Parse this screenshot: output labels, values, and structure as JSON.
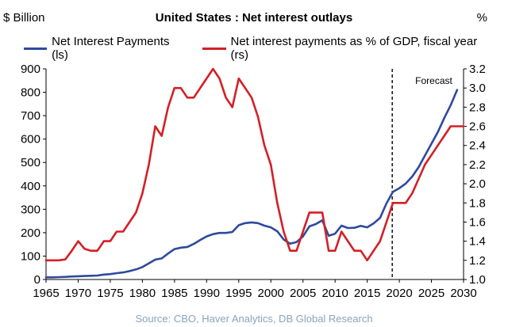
{
  "header": {
    "left_unit": "$ Billion",
    "title": "United States : Net interest outlays",
    "right_unit": "%"
  },
  "source": "Source: CBO, Haver Analytics, DB Global Research",
  "chart_data": {
    "type": "line",
    "title": "United States : Net interest outlays",
    "x_ticks": [
      "1965",
      "1970",
      "1975",
      "1980",
      "1985",
      "1990",
      "1995",
      "2000",
      "2005",
      "2010",
      "2015",
      "2020",
      "2025",
      "2030"
    ],
    "xlim": [
      1965,
      2030
    ],
    "y_left": {
      "label": "$ Billion",
      "lim": [
        0,
        900
      ],
      "ticks": [
        "0",
        "100",
        "200",
        "300",
        "400",
        "500",
        "600",
        "700",
        "800",
        "900"
      ]
    },
    "y_right": {
      "label": "%",
      "lim": [
        1.0,
        3.2
      ],
      "ticks": [
        "1.0",
        "1.2",
        "1.4",
        "1.6",
        "1.8",
        "2.0",
        "2.2",
        "2.4",
        "2.6",
        "2.8",
        "3.0",
        "3.2"
      ]
    },
    "grid": false,
    "legend_position": "top",
    "forecast": {
      "label": "Forecast",
      "x": 2018.9
    },
    "series": [
      {
        "name": "Net Interest Payments (ls)",
        "axis": "left",
        "color": "#2e4a9c",
        "points": [
          [
            1965,
            9
          ],
          [
            1966,
            9
          ],
          [
            1967,
            10
          ],
          [
            1968,
            11
          ],
          [
            1969,
            13
          ],
          [
            1970,
            14
          ],
          [
            1971,
            15
          ],
          [
            1972,
            16
          ],
          [
            1973,
            17
          ],
          [
            1974,
            21
          ],
          [
            1975,
            23
          ],
          [
            1976,
            27
          ],
          [
            1977,
            30
          ],
          [
            1978,
            36
          ],
          [
            1979,
            43
          ],
          [
            1980,
            53
          ],
          [
            1981,
            69
          ],
          [
            1982,
            85
          ],
          [
            1983,
            90
          ],
          [
            1984,
            111
          ],
          [
            1985,
            130
          ],
          [
            1986,
            136
          ],
          [
            1987,
            139
          ],
          [
            1988,
            152
          ],
          [
            1989,
            169
          ],
          [
            1990,
            184
          ],
          [
            1991,
            194
          ],
          [
            1992,
            199
          ],
          [
            1993,
            199
          ],
          [
            1994,
            203
          ],
          [
            1995,
            232
          ],
          [
            1996,
            241
          ],
          [
            1997,
            244
          ],
          [
            1998,
            241
          ],
          [
            1999,
            230
          ],
          [
            2000,
            223
          ],
          [
            2001,
            206
          ],
          [
            2002,
            171
          ],
          [
            2003,
            153
          ],
          [
            2004,
            160
          ],
          [
            2005,
            184
          ],
          [
            2006,
            227
          ],
          [
            2007,
            237
          ],
          [
            2008,
            253
          ],
          [
            2009,
            187
          ],
          [
            2010,
            196
          ],
          [
            2011,
            230
          ],
          [
            2012,
            220
          ],
          [
            2013,
            221
          ],
          [
            2014,
            229
          ],
          [
            2015,
            223
          ],
          [
            2016,
            240
          ],
          [
            2017,
            263
          ],
          [
            2018,
            325
          ],
          [
            2019,
            375
          ],
          [
            2020,
            390
          ],
          [
            2021,
            410
          ],
          [
            2022,
            440
          ],
          [
            2023,
            480
          ],
          [
            2024,
            530
          ],
          [
            2025,
            580
          ],
          [
            2026,
            630
          ],
          [
            2027,
            690
          ],
          [
            2028,
            745
          ],
          [
            2029,
            810
          ]
        ]
      },
      {
        "name": "Net interest payments as % of GDP, fiscal year (rs)",
        "axis": "right",
        "color": "#d41f26",
        "points": [
          [
            1965,
            1.2
          ],
          [
            1966,
            1.2
          ],
          [
            1967,
            1.2
          ],
          [
            1968,
            1.21
          ],
          [
            1969,
            1.3
          ],
          [
            1970,
            1.4
          ],
          [
            1971,
            1.32
          ],
          [
            1972,
            1.3
          ],
          [
            1973,
            1.3
          ],
          [
            1974,
            1.4
          ],
          [
            1975,
            1.4
          ],
          [
            1976,
            1.5
          ],
          [
            1977,
            1.5
          ],
          [
            1978,
            1.6
          ],
          [
            1979,
            1.7
          ],
          [
            1980,
            1.9
          ],
          [
            1981,
            2.2
          ],
          [
            1982,
            2.6
          ],
          [
            1983,
            2.5
          ],
          [
            1984,
            2.8
          ],
          [
            1985,
            3.0
          ],
          [
            1986,
            3.0
          ],
          [
            1987,
            2.9
          ],
          [
            1988,
            2.9
          ],
          [
            1989,
            3.0
          ],
          [
            1990,
            3.1
          ],
          [
            1991,
            3.2
          ],
          [
            1992,
            3.1
          ],
          [
            1993,
            2.9
          ],
          [
            1994,
            2.8
          ],
          [
            1995,
            3.1
          ],
          [
            1996,
            3.0
          ],
          [
            1997,
            2.9
          ],
          [
            1998,
            2.7
          ],
          [
            1999,
            2.4
          ],
          [
            2000,
            2.2
          ],
          [
            2001,
            1.8
          ],
          [
            2002,
            1.5
          ],
          [
            2003,
            1.3
          ],
          [
            2004,
            1.3
          ],
          [
            2005,
            1.5
          ],
          [
            2006,
            1.7
          ],
          [
            2007,
            1.7
          ],
          [
            2008,
            1.7
          ],
          [
            2009,
            1.3
          ],
          [
            2010,
            1.3
          ],
          [
            2011,
            1.5
          ],
          [
            2012,
            1.4
          ],
          [
            2013,
            1.3
          ],
          [
            2014,
            1.3
          ],
          [
            2015,
            1.2
          ],
          [
            2016,
            1.3
          ],
          [
            2017,
            1.4
          ],
          [
            2018,
            1.6
          ],
          [
            2019,
            1.8
          ],
          [
            2020,
            1.8
          ],
          [
            2021,
            1.8
          ],
          [
            2022,
            1.9
          ],
          [
            2023,
            2.05
          ],
          [
            2024,
            2.2
          ],
          [
            2025,
            2.3
          ],
          [
            2026,
            2.4
          ],
          [
            2027,
            2.5
          ],
          [
            2028,
            2.6
          ],
          [
            2029,
            2.6
          ],
          [
            2030,
            2.6
          ]
        ]
      }
    ]
  }
}
